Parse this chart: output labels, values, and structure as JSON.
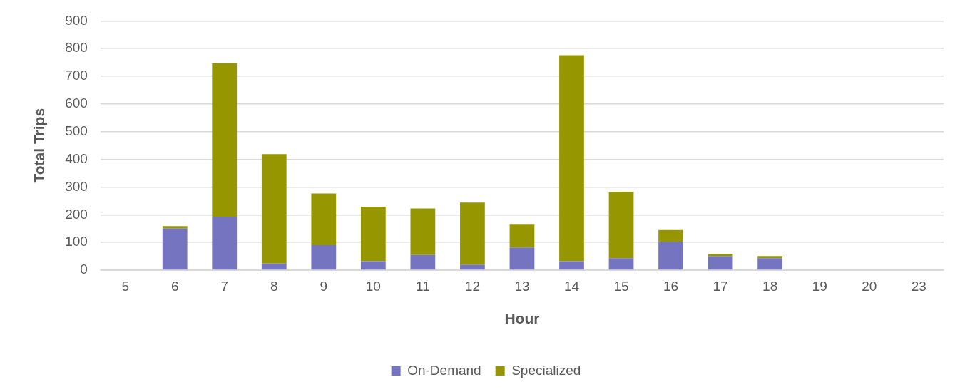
{
  "chart_data": {
    "type": "bar",
    "stacked": true,
    "xlabel": "Hour",
    "ylabel": "Total Trips",
    "categories": [
      "5",
      "6",
      "7",
      "8",
      "9",
      "10",
      "11",
      "12",
      "13",
      "14",
      "15",
      "16",
      "17",
      "18",
      "19",
      "20",
      "23"
    ],
    "series": [
      {
        "name": "On-Demand",
        "color": "#7474c1",
        "values": [
          0,
          150,
          193,
          24,
          90,
          32,
          55,
          20,
          82,
          32,
          43,
          102,
          51,
          43,
          0,
          0,
          0
        ]
      },
      {
        "name": "Specialized",
        "color": "#969600",
        "values": [
          null,
          9,
          554,
          395,
          187,
          197,
          168,
          224,
          85,
          744,
          240,
          43,
          8,
          8,
          null,
          0,
          0
        ]
      }
    ],
    "ylim": [
      0,
      900
    ],
    "yticks": [
      0,
      100,
      200,
      300,
      400,
      500,
      600,
      700,
      800,
      900
    ],
    "grid": "y",
    "legend": "bottom"
  }
}
